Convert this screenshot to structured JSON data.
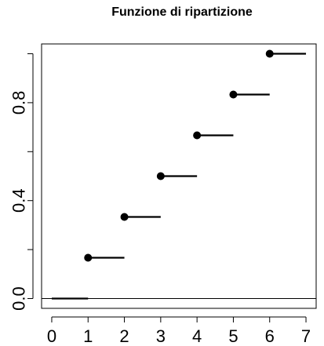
{
  "chart_data": {
    "type": "step",
    "title": "Funzione di ripartizione",
    "xlabel": "",
    "ylabel": "",
    "xlim": [
      -0.28,
      7.28
    ],
    "ylim": [
      -0.04,
      1.04
    ],
    "xticks": [
      0,
      1,
      2,
      3,
      4,
      5,
      6,
      7
    ],
    "xtick_labels": [
      "0",
      "1",
      "2",
      "3",
      "4",
      "5",
      "6",
      "7"
    ],
    "yticks": [
      0.0,
      0.2,
      0.4,
      0.6,
      0.8,
      1.0
    ],
    "ytick_labels": [
      "0.0",
      "",
      "0.4",
      "",
      "0.8",
      ""
    ],
    "grid": false,
    "reference_line_y": 0,
    "steps": [
      {
        "x_start": 0,
        "x_end": 1,
        "y": 0.0,
        "point": false
      },
      {
        "x_start": 1,
        "x_end": 2,
        "y": 0.1667,
        "point": true
      },
      {
        "x_start": 2,
        "x_end": 3,
        "y": 0.3333,
        "point": true
      },
      {
        "x_start": 3,
        "x_end": 4,
        "y": 0.5,
        "point": true
      },
      {
        "x_start": 4,
        "x_end": 5,
        "y": 0.6667,
        "point": true
      },
      {
        "x_start": 5,
        "x_end": 6,
        "y": 0.8333,
        "point": true
      },
      {
        "x_start": 6,
        "x_end": 7,
        "y": 1.0,
        "point": true
      }
    ],
    "colors": {
      "line": "#000000",
      "axis": "#000000",
      "reference": "#000000"
    }
  }
}
